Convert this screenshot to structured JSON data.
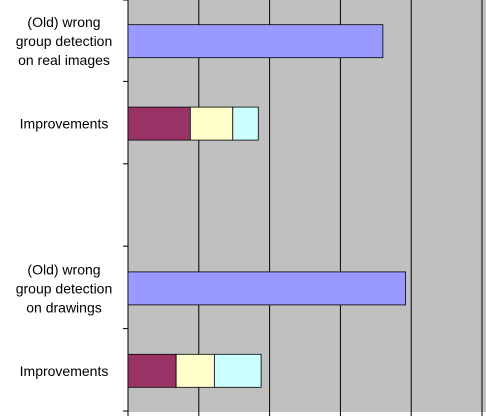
{
  "chart_data": {
    "type": "bar",
    "orientation": "horizontal",
    "stacked": true,
    "categories": [
      [
        "(Old) wrong",
        "group detection",
        "on real images"
      ],
      [
        "Improvements"
      ],
      [],
      [
        "(Old) wrong",
        "group detection",
        "on drawings"
      ],
      [
        "Improvements"
      ]
    ],
    "series": [
      {
        "color": "#9999ff",
        "values": [
          90,
          0,
          0,
          98,
          0
        ]
      },
      {
        "color": "#993366",
        "values": [
          0,
          22,
          0,
          0,
          17
        ]
      },
      {
        "color": "#ffffcc",
        "values": [
          0,
          15,
          0,
          0,
          13.5
        ]
      },
      {
        "color": "#ccffff",
        "values": [
          0,
          9,
          0,
          0,
          16.5
        ]
      }
    ],
    "xlim": [
      0,
      150
    ],
    "x_tick_step": 25,
    "grid": true,
    "plot_background": "#c0c0c0",
    "legend": "none"
  }
}
